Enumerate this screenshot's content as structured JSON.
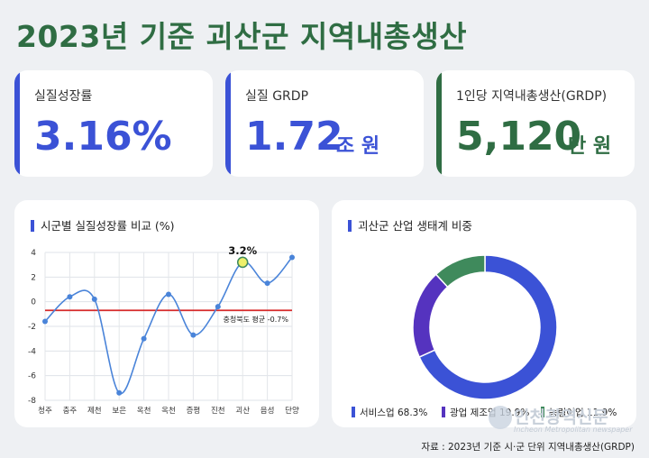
{
  "title": "2023년 기준 괴산군 지역내총생산",
  "stats": [
    {
      "label": "실질성장률",
      "value": "3.16%",
      "unit": "",
      "color": "#3b52d6"
    },
    {
      "label": "실질 GRDP",
      "value": "1.72",
      "unit": "조 원",
      "color": "#3b52d6"
    },
    {
      "label": "1인당 지역내총생산(GRDP)",
      "value": "5,120",
      "unit": "만 원",
      "color": "#2f6d43"
    }
  ],
  "line_panel": {
    "title": "시군별 실질성장률 비교 (%)"
  },
  "donut_panel": {
    "title": "괴산군 산업 생태계 비중"
  },
  "source": "자료 : 2023년 기준 시·군 단위 지역내총생산(GRDP)",
  "watermark": {
    "name": "인천광역신문",
    "sub": "Incheon Metropolitan newspaper"
  },
  "chart_data": [
    {
      "type": "line",
      "title": "시군별 실질성장률 비교 (%)",
      "categories": [
        "청주",
        "충주",
        "제천",
        "보은",
        "옥천",
        "옥천",
        "증평",
        "진천",
        "괴산",
        "음성",
        "단양"
      ],
      "values": [
        -1.6,
        0.4,
        0.2,
        -7.4,
        -3.0,
        0.6,
        -2.7,
        -0.4,
        3.2,
        1.5,
        3.6
      ],
      "ylim": [
        -8,
        4
      ],
      "yticks": [
        4,
        2,
        0,
        -2,
        -4,
        -6,
        -8
      ],
      "grid": true,
      "highlight": {
        "category_index": 8,
        "label": "3.2%"
      },
      "reference_line": {
        "value": -0.7,
        "label": "충청북도 평균 -0.7%",
        "color": "#d62b2b"
      },
      "line_color": "#4a84d9"
    },
    {
      "type": "pie",
      "title": "괴산군 산업 생태계 비중",
      "donut": true,
      "slices": [
        {
          "name": "서비스업",
          "label": "서비스업 68.3%",
          "value": 68.3,
          "color": "#3b52d6"
        },
        {
          "name": "광업 제조업",
          "label": "광업 제조업 19.9%",
          "value": 19.9,
          "color": "#5533bf"
        },
        {
          "name": "농림어업",
          "label": "농림어업 11.9%",
          "value": 11.9,
          "color": "#3f8a5c"
        }
      ],
      "legend": "bottom"
    }
  ]
}
